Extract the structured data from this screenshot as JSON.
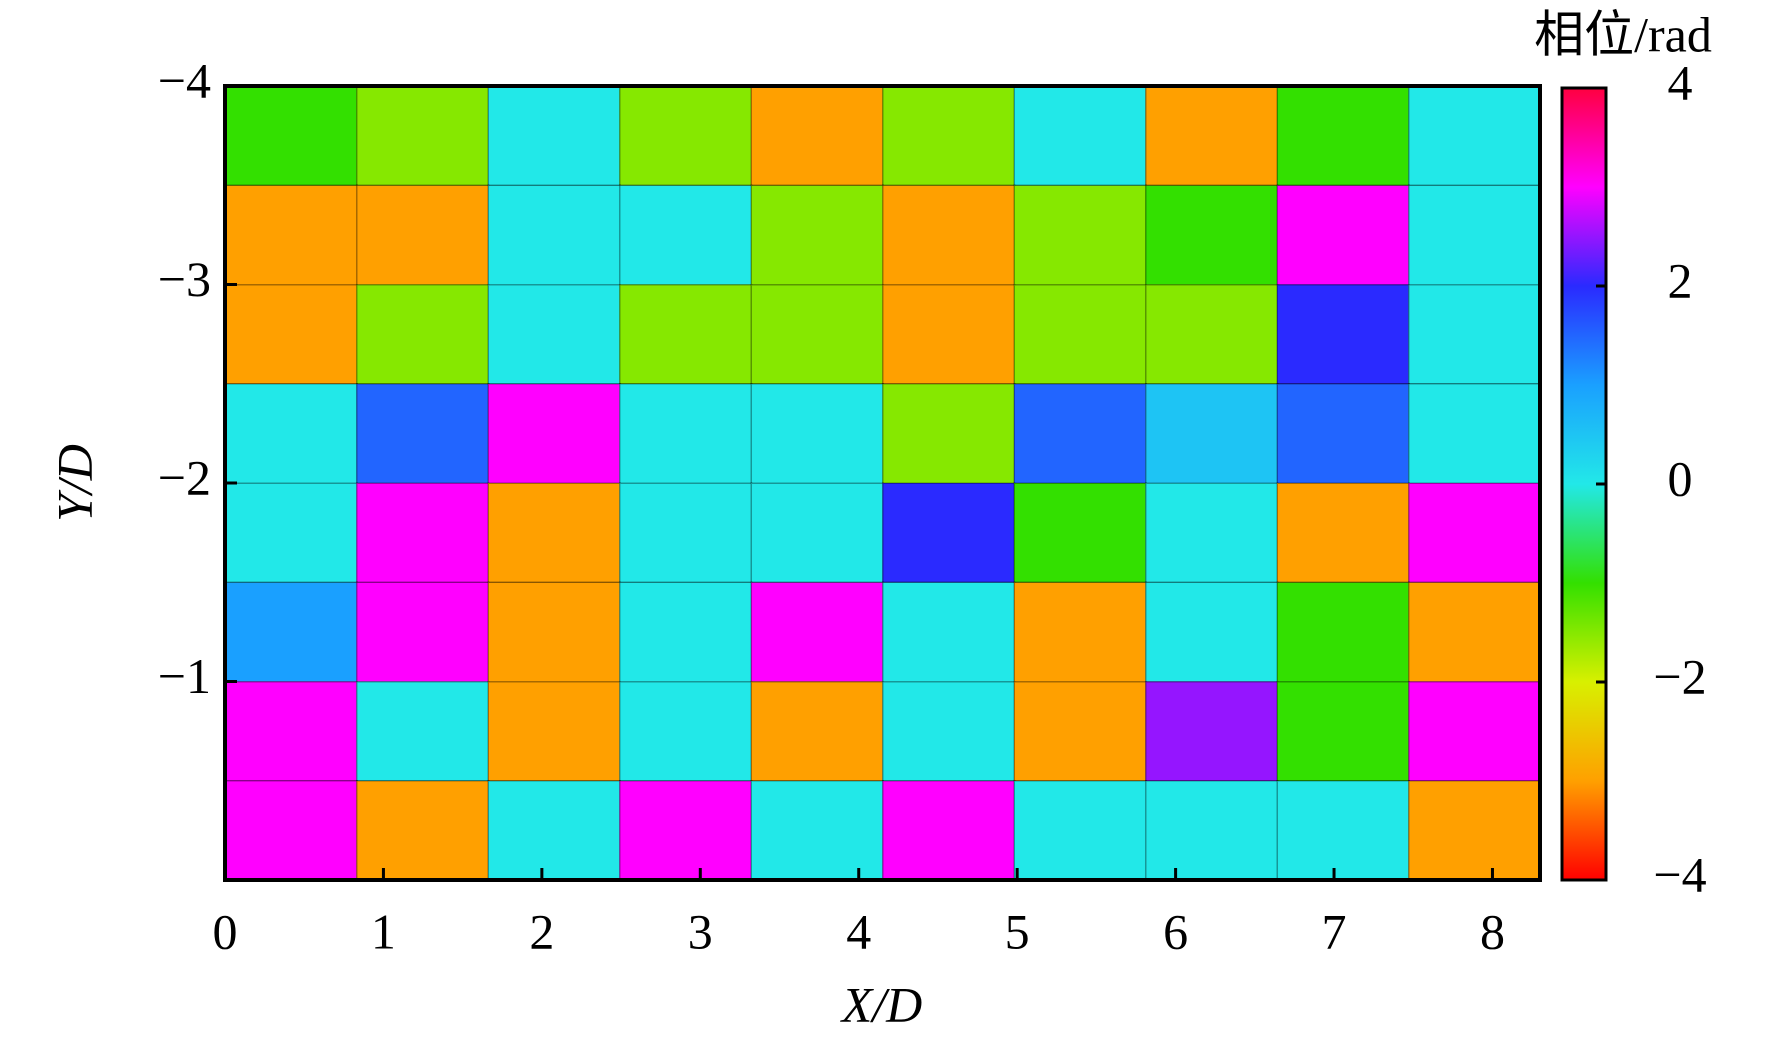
{
  "chart_data": {
    "type": "heatmap",
    "xlabel": "X/D",
    "ylabel": "Y/D",
    "colorbar_label": "相位/rad",
    "xlim": [
      0,
      8.3
    ],
    "ylim": [
      0,
      -4
    ],
    "xticks": [
      0,
      1,
      2,
      3,
      4,
      5,
      6,
      7,
      8
    ],
    "yticks": [
      {
        "value": -4,
        "label": "−4"
      },
      {
        "value": -3,
        "label": "−3"
      },
      {
        "value": -2,
        "label": "−2"
      },
      {
        "value": -1,
        "label": "−1"
      }
    ],
    "clim": [
      -4,
      4
    ],
    "cticks": [
      {
        "value": -4,
        "label": "−4"
      },
      {
        "value": -2,
        "label": "−2"
      },
      0,
      2,
      4
    ],
    "colormap": [
      "#ff0000",
      "#ffa000",
      "#d8f000",
      "#33e000",
      "#22e8e8",
      "#1aa0ff",
      "#2a2aff",
      "#ff00ff",
      "#ff0040"
    ],
    "x": [
      0.415,
      1.245,
      2.075,
      2.905,
      3.735,
      4.565,
      5.395,
      6.225,
      7.055,
      7.885
    ],
    "y": [
      -3.75,
      -3.25,
      -2.75,
      -2.25,
      -1.75,
      -1.25,
      -0.75,
      -0.25
    ],
    "z": [
      [
        -1,
        -1.5,
        0,
        -1.5,
        -3,
        -1.5,
        0,
        -3,
        -1,
        0
      ],
      [
        -3,
        -3,
        0,
        0,
        -1.5,
        -3,
        -1.5,
        -1,
        3,
        0
      ],
      [
        -3,
        -1.5,
        0,
        -1.5,
        -1.5,
        -3,
        -1.5,
        -1.5,
        2,
        0
      ],
      [
        0,
        1.5,
        3,
        0,
        0,
        -1.5,
        1.5,
        0.5,
        1.5,
        0
      ],
      [
        0,
        3,
        -3,
        0,
        0,
        2,
        -1,
        0,
        -3,
        3
      ],
      [
        1,
        3,
        -3,
        0,
        3,
        0,
        -3,
        0,
        -1,
        -3
      ],
      [
        3,
        0,
        -3,
        0,
        -3,
        0,
        -3,
        2.5,
        -1,
        3
      ],
      [
        3,
        -3,
        0,
        3,
        0,
        3,
        0,
        0,
        0,
        -3
      ]
    ]
  }
}
